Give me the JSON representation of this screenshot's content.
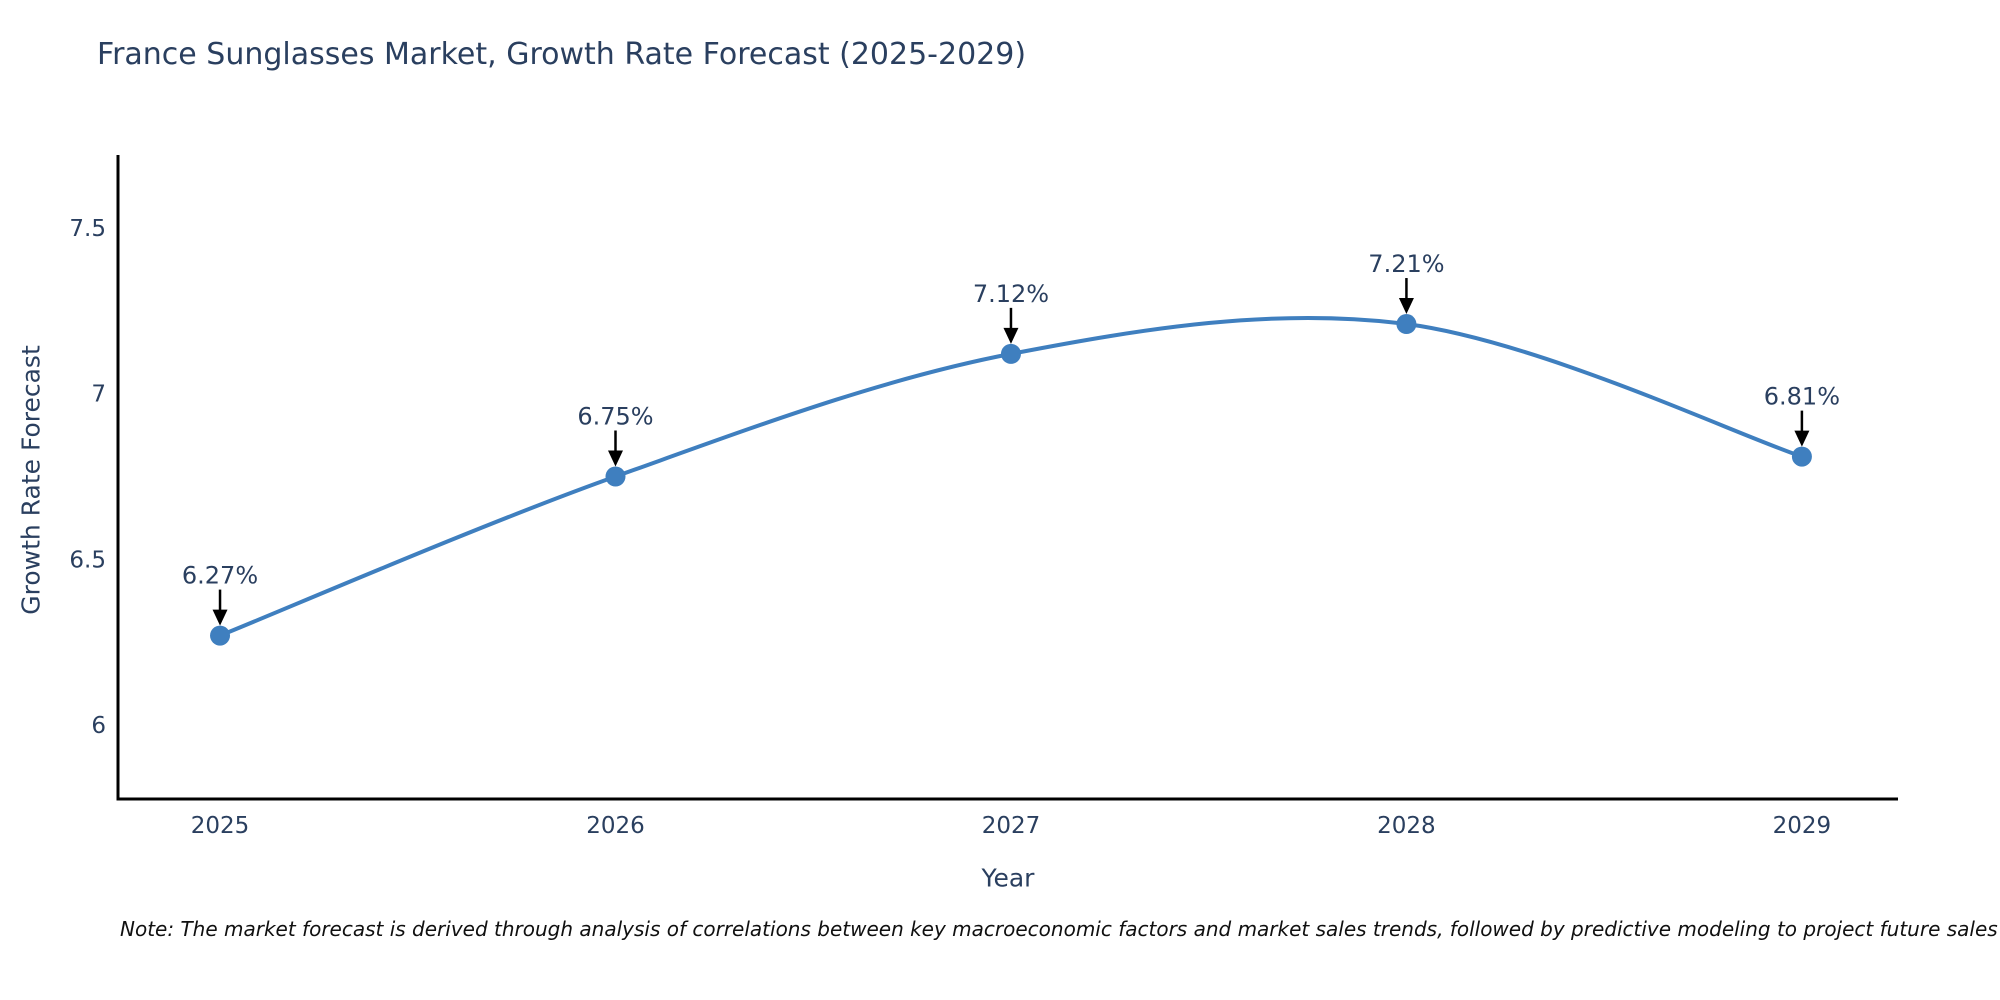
{
  "title": "France Sunglasses Market, Growth Rate Forecast (2025-2029)",
  "note": "Note: The market forecast is derived through analysis of correlations between key macroeconomic factors and market sales trends, followed by predictive modeling to project future sales",
  "chart_data": {
    "type": "line",
    "line_shape": "spline",
    "x": [
      2025,
      2026,
      2027,
      2028,
      2029
    ],
    "xticks": [
      "2025",
      "2026",
      "2027",
      "2028",
      "2029"
    ],
    "series": [
      {
        "name": "Growth Rate Forecast",
        "values": [
          6.27,
          6.75,
          7.12,
          7.21,
          6.81
        ]
      }
    ],
    "point_labels": [
      "6.27%",
      "6.75%",
      "7.12%",
      "7.21%",
      "6.81%"
    ],
    "xlabel": "Year",
    "ylabel": "Growth Rate Forecast",
    "yticks": [
      6,
      6.5,
      7,
      7.5
    ],
    "ylim": [
      5.777,
      7.72
    ],
    "xlim": [
      2024.742,
      2029.243
    ],
    "grid": false,
    "legend": "none",
    "line_color": "#3f7fbf",
    "marker_color": "#3f7fbf",
    "marker_size": 10,
    "arrow_color": "#000000",
    "axis_line_color": "#000000",
    "tick_text_color": "#2a3f5f",
    "annotation_text_color": "#2a3f5f"
  },
  "colors": {
    "background": "#ffffff",
    "title_text": "#2a3f5f",
    "note_text": "#101010"
  }
}
